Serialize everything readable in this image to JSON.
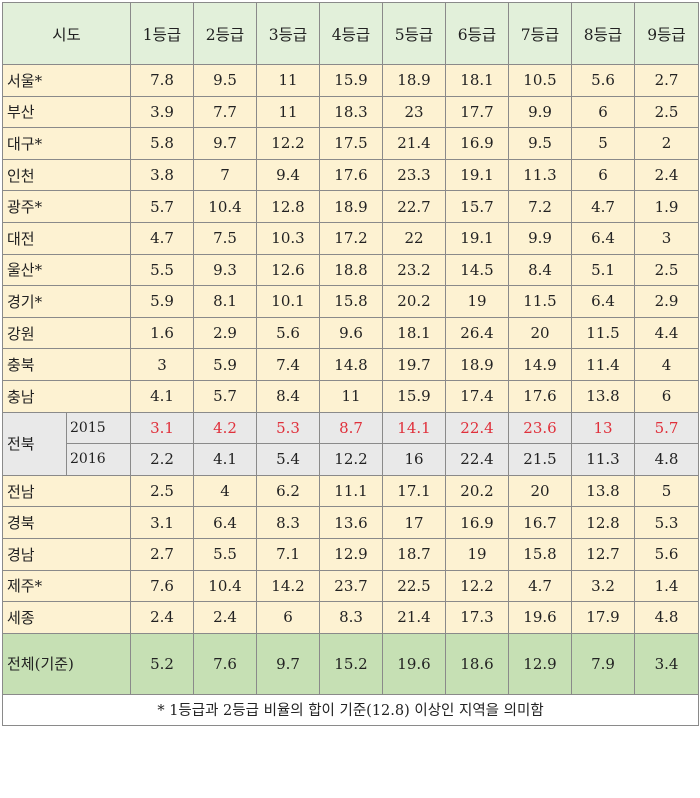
{
  "table": {
    "region_header": "시도",
    "grade_headers": [
      "1등급",
      "2등급",
      "3등급",
      "4등급",
      "5등급",
      "6등급",
      "7등급",
      "8등급",
      "9등급"
    ],
    "rows_before": [
      {
        "region": "서울*",
        "values": [
          "7.8",
          "9.5",
          "11",
          "15.9",
          "18.9",
          "18.1",
          "10.5",
          "5.6",
          "2.7"
        ]
      },
      {
        "region": "부산",
        "values": [
          "3.9",
          "7.7",
          "11",
          "18.3",
          "23",
          "17.7",
          "9.9",
          "6",
          "2.5"
        ]
      },
      {
        "region": "대구*",
        "values": [
          "5.8",
          "9.7",
          "12.2",
          "17.5",
          "21.4",
          "16.9",
          "9.5",
          "5",
          "2"
        ]
      },
      {
        "region": "인천",
        "values": [
          "3.8",
          "7",
          "9.4",
          "17.6",
          "23.3",
          "19.1",
          "11.3",
          "6",
          "2.4"
        ]
      },
      {
        "region": "광주*",
        "values": [
          "5.7",
          "10.4",
          "12.8",
          "18.9",
          "22.7",
          "15.7",
          "7.2",
          "4.7",
          "1.9"
        ]
      },
      {
        "region": "대전",
        "values": [
          "4.7",
          "7.5",
          "10.3",
          "17.2",
          "22",
          "19.1",
          "9.9",
          "6.4",
          "3"
        ]
      },
      {
        "region": "울산*",
        "values": [
          "5.5",
          "9.3",
          "12.6",
          "18.8",
          "23.2",
          "14.5",
          "8.4",
          "5.1",
          "2.5"
        ]
      },
      {
        "region": "경기*",
        "values": [
          "5.9",
          "8.1",
          "10.1",
          "15.8",
          "20.2",
          "19",
          "11.5",
          "6.4",
          "2.9"
        ]
      },
      {
        "region": "강원",
        "values": [
          "1.6",
          "2.9",
          "5.6",
          "9.6",
          "18.1",
          "26.4",
          "20",
          "11.5",
          "4.4"
        ]
      },
      {
        "region": "충북",
        "values": [
          "3",
          "5.9",
          "7.4",
          "14.8",
          "19.7",
          "18.9",
          "14.9",
          "11.4",
          "4"
        ]
      },
      {
        "region": "충남",
        "values": [
          "4.1",
          "5.7",
          "8.4",
          "11",
          "15.9",
          "17.4",
          "17.6",
          "13.8",
          "6"
        ]
      }
    ],
    "split_region": {
      "region": "전북",
      "years": [
        {
          "year": "2015",
          "values": [
            "3.1",
            "4.2",
            "5.3",
            "8.7",
            "14.1",
            "22.4",
            "23.6",
            "13",
            "5.7"
          ]
        },
        {
          "year": "2016",
          "values": [
            "2.2",
            "4.1",
            "5.4",
            "12.2",
            "16",
            "22.4",
            "21.5",
            "11.3",
            "4.8"
          ]
        }
      ]
    },
    "rows_after": [
      {
        "region": "전남",
        "values": [
          "2.5",
          "4",
          "6.2",
          "11.1",
          "17.1",
          "20.2",
          "20",
          "13.8",
          "5"
        ]
      },
      {
        "region": "경북",
        "values": [
          "3.1",
          "6.4",
          "8.3",
          "13.6",
          "17",
          "16.9",
          "16.7",
          "12.8",
          "5.3"
        ]
      },
      {
        "region": "경남",
        "values": [
          "2.7",
          "5.5",
          "7.1",
          "12.9",
          "18.7",
          "19",
          "15.8",
          "12.7",
          "5.6"
        ]
      },
      {
        "region": "제주*",
        "values": [
          "7.6",
          "10.4",
          "14.2",
          "23.7",
          "22.5",
          "12.2",
          "4.7",
          "3.2",
          "1.4"
        ]
      },
      {
        "region": "세종",
        "values": [
          "2.4",
          "2.4",
          "6",
          "8.3",
          "21.4",
          "17.3",
          "19.6",
          "17.9",
          "4.8"
        ]
      }
    ],
    "total": {
      "region": "전체(기준)",
      "values": [
        "5.2",
        "7.6",
        "9.7",
        "15.2",
        "19.6",
        "18.6",
        "12.9",
        "7.9",
        "3.4"
      ]
    },
    "footnote": "* 1등급과 2등급 비율의 합이 기준(12.8) 이상인 지역을 의미함"
  },
  "colors": {
    "header_bg": "#e2f0da",
    "row_bg": "#fdf2d2",
    "split_bg": "#e9e9e9",
    "total_bg": "#c6e0b4",
    "highlight_text": "#e0303b"
  }
}
